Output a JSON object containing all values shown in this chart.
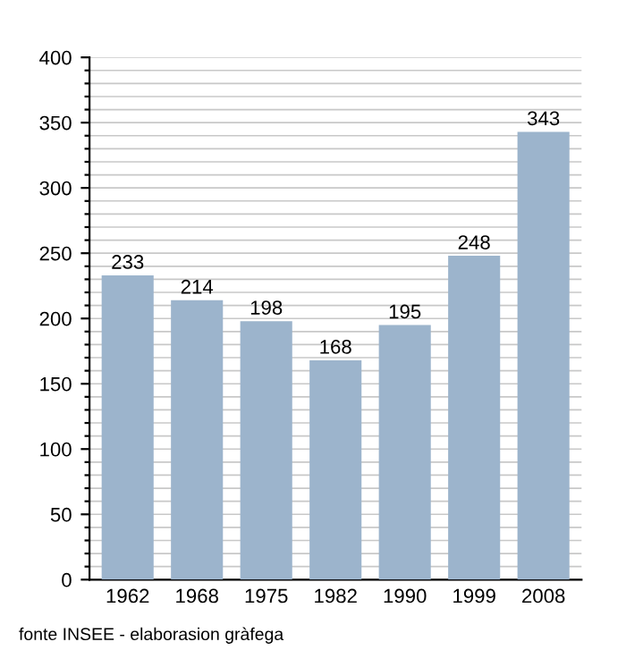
{
  "chart_data": {
    "type": "bar",
    "categories": [
      "1962",
      "1968",
      "1975",
      "1982",
      "1990",
      "1999",
      "2008"
    ],
    "values": [
      233,
      214,
      198,
      168,
      195,
      248,
      343
    ],
    "color": "#9cb4cc",
    "data_labels": true,
    "ylim": [
      0,
      400
    ],
    "yticks": [
      0,
      {
        "value": 10,
        "label": null
      },
      {
        "value": 20,
        "label": null
      },
      {
        "value": 30,
        "label": null
      },
      {
        "value": 40,
        "label": null
      },
      50,
      {
        "value": 60,
        "label": null
      },
      {
        "value": 70,
        "label": null
      },
      {
        "value": 80,
        "label": null
      },
      {
        "value": 90,
        "label": null
      },
      100,
      {
        "value": 110,
        "label": null
      },
      {
        "value": 120,
        "label": null
      },
      {
        "value": 130,
        "label": null
      },
      {
        "value": 140,
        "label": null
      },
      150,
      {
        "value": 160,
        "label": null
      },
      {
        "value": 170,
        "label": null
      },
      {
        "value": 180,
        "label": null
      },
      {
        "value": 190,
        "label": null
      },
      200,
      {
        "value": 210,
        "label": null
      },
      {
        "value": 220,
        "label": null
      },
      {
        "value": 230,
        "label": null
      },
      {
        "value": 240,
        "label": null
      },
      250,
      {
        "value": 260,
        "label": null
      },
      {
        "value": 270,
        "label": null
      },
      {
        "value": 280,
        "label": null
      },
      {
        "value": 290,
        "label": null
      },
      300,
      {
        "value": 310,
        "label": null
      },
      {
        "value": 320,
        "label": null
      },
      {
        "value": 330,
        "label": null
      },
      {
        "value": 340,
        "label": null
      },
      350,
      {
        "value": 360,
        "label": null
      },
      {
        "value": 370,
        "label": null
      },
      {
        "value": 380,
        "label": null
      },
      {
        "value": 390,
        "label": null
      },
      400
    ],
    "grid": "y",
    "annotations": [
      "fonte INSEE - elaborasion gràfega"
    ]
  }
}
